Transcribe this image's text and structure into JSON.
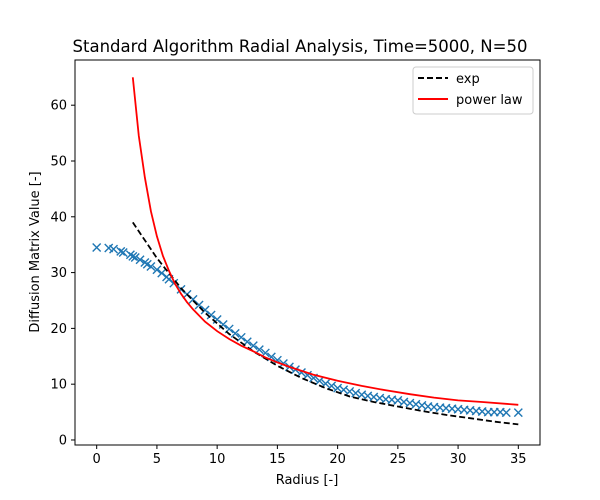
{
  "chart_data": {
    "type": "scatter",
    "title": "Standard Algorithm Radial Analysis, Time=5000, N=50",
    "xlabel": "Radius [-]",
    "ylabel": "Diffusion Matrix Value [-]",
    "xlim": [
      -1.8,
      36.8
    ],
    "ylim": [
      -0.9,
      68.1
    ],
    "xticks": [
      0,
      5,
      10,
      15,
      20,
      25,
      30,
      35
    ],
    "yticks": [
      0,
      10,
      20,
      30,
      40,
      50,
      60
    ],
    "grid": false,
    "legend_position": "top-right",
    "series": [
      {
        "name": "",
        "kind": "scatter",
        "marker": "x",
        "color": "#1f77b4",
        "x": [
          0,
          1,
          1.4,
          2,
          2.2,
          2.8,
          3,
          3.2,
          3.6,
          4,
          4.2,
          4.5,
          5,
          5.4,
          5.8,
          6,
          6.4,
          7,
          7.5,
          8,
          8.5,
          9,
          9.5,
          10,
          10.5,
          11,
          11.5,
          12,
          12.5,
          13,
          13.5,
          14,
          14.5,
          15,
          15.5,
          16,
          16.5,
          17,
          17.5,
          18,
          18.5,
          19,
          19.5,
          20,
          20.5,
          21,
          21.5,
          22,
          22.5,
          23,
          23.5,
          24,
          24.5,
          25,
          25.5,
          26,
          26.5,
          27,
          27.5,
          28,
          28.5,
          29,
          29.5,
          30,
          30.5,
          31,
          31.5,
          32,
          32.5,
          33,
          33.5,
          34,
          35
        ],
        "y": [
          34.5,
          34.4,
          34.2,
          33.8,
          33.6,
          33.2,
          32.9,
          32.7,
          32.3,
          31.8,
          31.5,
          31.1,
          30.5,
          29.9,
          29.2,
          28.8,
          28.1,
          27.0,
          26.1,
          25.2,
          24.2,
          23.3,
          22.4,
          21.6,
          20.7,
          19.9,
          19.1,
          18.4,
          17.6,
          16.9,
          16.2,
          15.6,
          14.9,
          14.3,
          13.7,
          13.1,
          12.6,
          12.1,
          11.6,
          11.1,
          10.6,
          10.1,
          9.7,
          9.3,
          9.0,
          8.7,
          8.4,
          8.1,
          7.9,
          7.7,
          7.5,
          7.3,
          7.2,
          7.1,
          6.8,
          6.6,
          6.4,
          6.2,
          6.0,
          5.9,
          5.8,
          5.7,
          5.6,
          5.5,
          5.4,
          5.3,
          5.2,
          5.1,
          5.0,
          5.0,
          5.0,
          4.9,
          4.9
        ]
      },
      {
        "name": "exp",
        "kind": "line",
        "style": "dashed",
        "color": "#000000",
        "x": [
          3,
          5,
          7,
          9,
          11,
          13,
          15,
          17,
          19,
          21,
          23,
          25,
          27,
          29,
          31,
          33,
          35
        ],
        "y": [
          39,
          32.6,
          27.2,
          22.8,
          19.0,
          15.9,
          13.3,
          11.1,
          9.3,
          7.8,
          6.8,
          6.0,
          5.2,
          4.5,
          3.9,
          3.3,
          2.8
        ]
      },
      {
        "name": "power law",
        "kind": "line",
        "style": "solid",
        "color": "#ff0000",
        "x": [
          3,
          3.5,
          4,
          4.5,
          5,
          5.5,
          6,
          6.5,
          7,
          7.5,
          8,
          9,
          10,
          11,
          12,
          13,
          14,
          15,
          16,
          18,
          20,
          22,
          24,
          26,
          28,
          30,
          32,
          35
        ],
        "y": [
          65,
          54.5,
          47,
          41,
          36.5,
          33,
          30.3,
          28,
          26.2,
          24.7,
          23.4,
          21.2,
          19.5,
          18.1,
          16.9,
          15.9,
          14.8,
          13.9,
          13.1,
          11.7,
          10.6,
          9.7,
          8.9,
          8.2,
          7.6,
          7.1,
          6.8,
          6.3
        ]
      }
    ]
  }
}
